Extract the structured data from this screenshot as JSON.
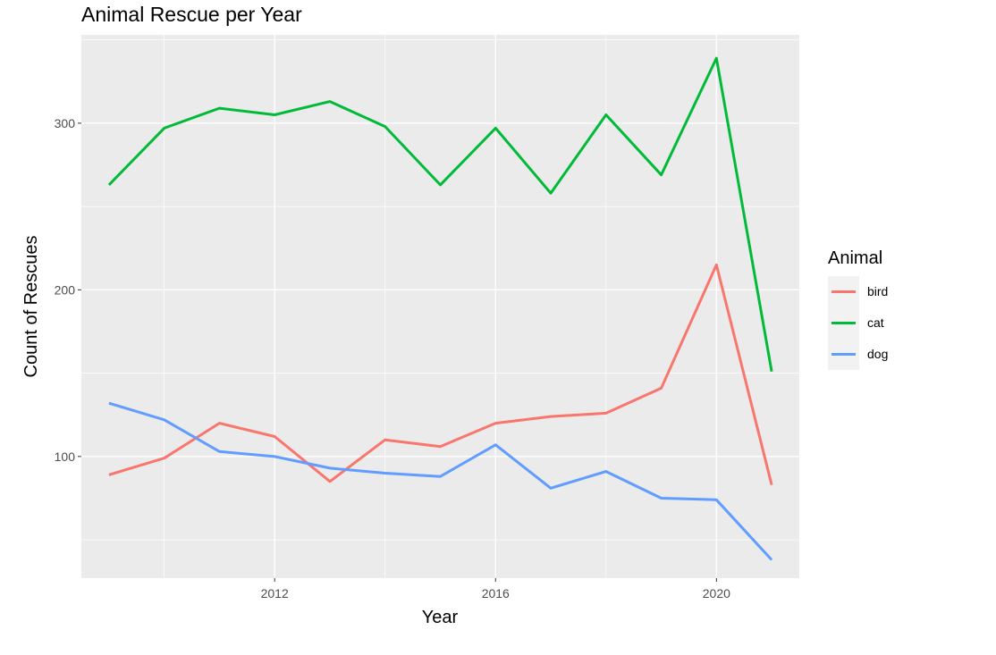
{
  "chart_data": {
    "type": "line",
    "title": "Animal Rescue per Year",
    "xlabel": "Year",
    "ylabel": "Count of Rescues",
    "x": [
      2009,
      2010,
      2011,
      2012,
      2013,
      2014,
      2015,
      2016,
      2017,
      2018,
      2019,
      2020,
      2021
    ],
    "xlim": [
      2008.5,
      2021.5
    ],
    "ylim": [
      27,
      353
    ],
    "x_ticks": [
      2012,
      2016,
      2020
    ],
    "x_tick_labels": [
      "2012",
      "2016",
      "2020"
    ],
    "y_ticks": [
      100,
      200,
      300
    ],
    "y_tick_labels": [
      "100",
      "200",
      "300"
    ],
    "grid": true,
    "legend": {
      "title": "Animal",
      "position": "right"
    },
    "series": [
      {
        "name": "bird",
        "color": "#F8766D",
        "values": [
          89,
          99,
          120,
          112,
          85,
          110,
          106,
          120,
          124,
          126,
          141,
          215,
          83
        ]
      },
      {
        "name": "cat",
        "color": "#00BA38",
        "values": [
          263,
          297,
          309,
          305,
          313,
          298,
          263,
          297,
          258,
          305,
          269,
          339,
          151
        ]
      },
      {
        "name": "dog",
        "color": "#619CFF",
        "values": [
          132,
          122,
          103,
          100,
          93,
          90,
          88,
          107,
          81,
          91,
          75,
          74,
          38
        ]
      }
    ]
  }
}
